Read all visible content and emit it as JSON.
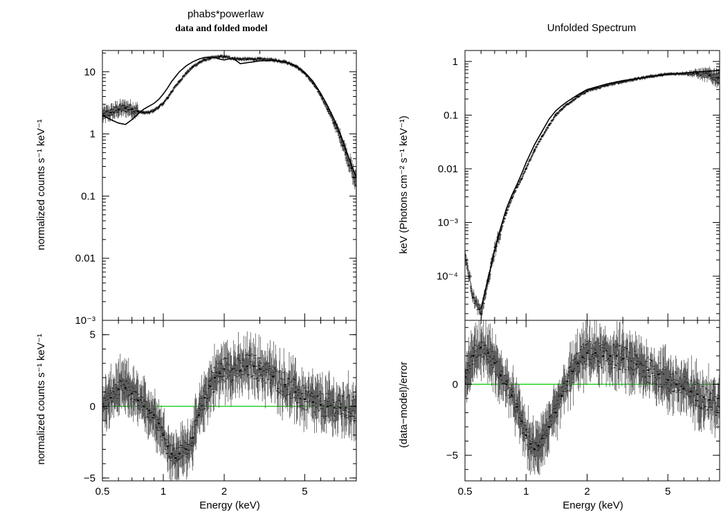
{
  "left_panel": {
    "title": "phabs*powerlaw",
    "subtitle": "data and folded model"
  },
  "right_panel": {
    "title": "Unfolded Spectrum"
  },
  "colors": {
    "data": "#000000",
    "error_bars": "#555555",
    "model": "#000000",
    "zero_line": "#00cc00"
  },
  "chart_data": [
    {
      "type": "line",
      "title": "phabs*powerlaw",
      "subtitle": "data and folded model",
      "xlabel": "",
      "ylabel": "normalized counts s⁻¹ keV⁻¹",
      "xscale": "log",
      "yscale": "log",
      "xlim": [
        0.5,
        9.0
      ],
      "ylim": [
        0.001,
        22
      ],
      "x_ticks": [
        0.5,
        1,
        2,
        5
      ],
      "y_ticks": [
        0.001,
        0.01,
        0.1,
        1,
        10
      ],
      "y_tick_labels": [
        "10⁻³",
        "0.01",
        "0.1",
        "1",
        "10"
      ],
      "series": [
        {
          "kind": "data",
          "x": [
            0.5,
            0.55,
            0.6,
            0.65,
            0.7,
            0.75,
            0.8,
            0.85,
            0.9,
            0.95,
            1.0,
            1.05,
            1.1,
            1.2,
            1.3,
            1.4,
            1.5,
            1.6,
            1.7,
            1.8,
            1.9,
            2.0,
            2.2,
            2.4,
            2.6,
            2.8,
            3.0,
            3.5,
            4.0,
            4.5,
            5.0,
            5.5,
            6.0,
            6.5,
            7.0,
            7.5,
            8.0,
            8.5,
            9.0
          ],
          "y": [
            2.0,
            2.2,
            2.5,
            2.6,
            2.5,
            2.3,
            2.2,
            2.2,
            2.4,
            2.7,
            3.1,
            3.8,
            4.8,
            7.0,
            9.5,
            12.0,
            14.0,
            15.5,
            16.5,
            17.0,
            17.5,
            17.5,
            16.5,
            16.0,
            16.0,
            16.0,
            16.0,
            15.5,
            14.5,
            12.5,
            9.5,
            6.5,
            4.2,
            2.5,
            1.5,
            0.9,
            0.5,
            0.28,
            0.15
          ]
        },
        {
          "kind": "model",
          "x": [
            0.5,
            0.55,
            0.6,
            0.65,
            0.7,
            0.75,
            0.8,
            0.85,
            0.9,
            0.95,
            1.0,
            1.05,
            1.1,
            1.2,
            1.3,
            1.4,
            1.5,
            1.6,
            1.7,
            1.8,
            1.9,
            2.0,
            2.1,
            2.2,
            2.3,
            2.4,
            2.6,
            2.8,
            3.0,
            3.5,
            4.0,
            4.5,
            5.0,
            5.5,
            6.0,
            6.5,
            7.0,
            7.5,
            8.0,
            8.5,
            9.0
          ],
          "y": [
            2.0,
            1.7,
            1.5,
            1.42,
            1.7,
            2.1,
            2.5,
            2.8,
            3.1,
            3.6,
            4.4,
            5.5,
            7.0,
            10.0,
            12.5,
            14.5,
            16.0,
            17.0,
            17.3,
            17.0,
            16.0,
            15.5,
            16.0,
            16.5,
            15.0,
            13.5,
            14.0,
            14.5,
            15.0,
            15.2,
            14.5,
            12.5,
            9.8,
            7.0,
            4.5,
            2.8,
            1.7,
            1.0,
            0.55,
            0.32,
            0.2
          ]
        }
      ]
    },
    {
      "type": "scatter",
      "xlabel": "Energy (keV)",
      "ylabel": "normalized counts s⁻¹ keV⁻¹",
      "xscale": "log",
      "xlim": [
        0.5,
        9.0
      ],
      "ylim": [
        -5.2,
        6.0
      ],
      "x_ticks": [
        0.5,
        1,
        2,
        5
      ],
      "y_ticks": [
        -5,
        0,
        5
      ],
      "y_tick_labels": [
        "−5",
        "0",
        "5"
      ],
      "reference_line": 0,
      "series": [
        {
          "kind": "residuals",
          "x": [
            0.5,
            0.55,
            0.6,
            0.65,
            0.7,
            0.75,
            0.8,
            0.85,
            0.9,
            0.95,
            1.0,
            1.05,
            1.1,
            1.15,
            1.2,
            1.3,
            1.4,
            1.5,
            1.6,
            1.7,
            1.8,
            1.9,
            2.0,
            2.2,
            2.4,
            2.6,
            2.8,
            3.0,
            3.5,
            4.0,
            4.5,
            5.0,
            5.5,
            6.0,
            6.5,
            7.0,
            7.5,
            8.0,
            9.0
          ],
          "y": [
            0.0,
            0.6,
            1.2,
            1.3,
            0.9,
            0.4,
            0.0,
            -0.3,
            -0.6,
            -1.2,
            -2.0,
            -2.8,
            -3.3,
            -3.6,
            -3.3,
            -3.0,
            -2.2,
            -0.6,
            0.6,
            1.4,
            2.0,
            2.3,
            2.6,
            2.6,
            2.5,
            2.8,
            2.8,
            2.6,
            2.1,
            1.5,
            1.0,
            0.5,
            0.3,
            0.1,
            0.0,
            -0.1,
            -0.1,
            -0.1,
            0.0
          ]
        }
      ]
    },
    {
      "type": "line",
      "title": "Unfolded Spectrum",
      "xlabel": "",
      "ylabel": "keV (Photons cm⁻² s⁻¹ keV⁻¹)",
      "xscale": "log",
      "yscale": "log",
      "xlim": [
        0.5,
        9.0
      ],
      "ylim": [
        1.5e-05,
        1.6
      ],
      "x_ticks": [
        0.5,
        1,
        2,
        5
      ],
      "y_ticks": [
        0.0001,
        0.001,
        0.01,
        0.1,
        1
      ],
      "y_tick_labels": [
        "10⁻⁴",
        "10⁻³",
        "0.01",
        "0.1",
        "1"
      ],
      "series": [
        {
          "kind": "data",
          "x": [
            0.5,
            0.55,
            0.6,
            0.65,
            0.7,
            0.75,
            0.8,
            0.85,
            0.9,
            0.95,
            1.0,
            1.1,
            1.2,
            1.3,
            1.4,
            1.5,
            1.6,
            1.8,
            2.0,
            2.5,
            3.0,
            4.0,
            5.0,
            6.0,
            7.0,
            8.0,
            9.0
          ],
          "y": [
            0.00025,
            4e-05,
            2e-05,
            8e-05,
            0.0003,
            0.0007,
            0.0015,
            0.0028,
            0.0045,
            0.0065,
            0.01,
            0.022,
            0.04,
            0.065,
            0.1,
            0.13,
            0.16,
            0.22,
            0.28,
            0.36,
            0.42,
            0.52,
            0.58,
            0.6,
            0.6,
            0.55,
            0.5
          ]
        },
        {
          "kind": "model",
          "x": [
            0.6,
            0.65,
            0.7,
            0.75,
            0.8,
            0.85,
            0.9,
            0.95,
            1.0,
            1.1,
            1.2,
            1.3,
            1.4,
            1.5,
            1.6,
            1.8,
            2.0,
            2.5,
            3.0,
            4.0,
            5.0,
            6.0,
            7.0,
            8.0,
            9.0
          ],
          "y": [
            2.5e-05,
            9e-05,
            0.0003,
            0.0008,
            0.0018,
            0.0032,
            0.005,
            0.008,
            0.013,
            0.028,
            0.05,
            0.085,
            0.12,
            0.15,
            0.18,
            0.24,
            0.3,
            0.38,
            0.44,
            0.52,
            0.57,
            0.61,
            0.64,
            0.66,
            0.68
          ]
        }
      ]
    },
    {
      "type": "scatter",
      "xlabel": "Energy (keV)",
      "ylabel": "(data−model)/error",
      "xscale": "log",
      "xlim": [
        0.5,
        9.0
      ],
      "ylim": [
        -6.8,
        4.5
      ],
      "x_ticks": [
        0.5,
        1,
        2,
        5
      ],
      "y_ticks": [
        -5,
        0
      ],
      "y_tick_labels": [
        "−5",
        "0"
      ],
      "reference_line": 0,
      "series": [
        {
          "kind": "residuals",
          "x": [
            0.5,
            0.55,
            0.6,
            0.65,
            0.7,
            0.75,
            0.8,
            0.85,
            0.9,
            0.95,
            1.0,
            1.05,
            1.1,
            1.15,
            1.2,
            1.3,
            1.4,
            1.5,
            1.6,
            1.7,
            1.8,
            1.9,
            2.0,
            2.2,
            2.4,
            2.6,
            2.8,
            3.0,
            3.5,
            4.0,
            4.5,
            5.0,
            5.5,
            6.0,
            6.5,
            7.0,
            7.5,
            8.0,
            9.0
          ],
          "y": [
            0.5,
            2.0,
            2.6,
            2.2,
            1.5,
            0.6,
            0.0,
            -0.8,
            -1.6,
            -2.6,
            -3.6,
            -4.2,
            -4.6,
            -4.3,
            -3.8,
            -3.0,
            -2.0,
            -0.8,
            0.2,
            0.9,
            1.5,
            1.9,
            2.2,
            2.2,
            2.0,
            2.0,
            2.0,
            1.8,
            1.4,
            1.0,
            0.7,
            0.3,
            0.0,
            -0.3,
            -0.5,
            -0.7,
            -0.9,
            -1.1,
            -1.6
          ]
        }
      ]
    }
  ]
}
